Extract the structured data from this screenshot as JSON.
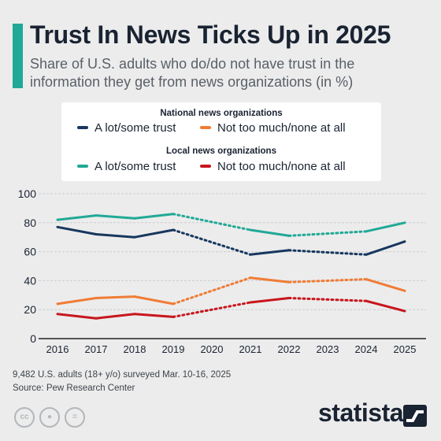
{
  "header": {
    "title": "Trust In News Ticks Up in 2025",
    "subtitle": "Share of U.S. adults who do/do not have trust in the information they get from news organizations (in %)",
    "accent_color": "#1fa996"
  },
  "legend": {
    "national_heading": "National news organizations",
    "local_heading": "Local news organizations"
  },
  "chart_data": {
    "type": "line",
    "x": [
      2016,
      2017,
      2018,
      2019,
      2020,
      2021,
      2022,
      2023,
      2024,
      2025
    ],
    "ylim": [
      0,
      100
    ],
    "yticks": [
      0,
      20,
      40,
      60,
      80,
      100
    ],
    "grid": true,
    "note": "Dotted segments connect years without survey data",
    "series": [
      {
        "name": "A lot/some trust",
        "group": "National news organizations",
        "color": "#17375e",
        "values": [
          77,
          72,
          70,
          75,
          null,
          58,
          61,
          null,
          58,
          67
        ]
      },
      {
        "name": "Not too much/none at all",
        "group": "National news organizations",
        "color": "#f07c36",
        "values": [
          24,
          28,
          29,
          24,
          null,
          42,
          39,
          null,
          41,
          33
        ]
      },
      {
        "name": "A lot/some trust",
        "group": "Local news organizations",
        "color": "#21a996",
        "values": [
          82,
          85,
          83,
          86,
          null,
          75,
          71,
          null,
          74,
          80
        ]
      },
      {
        "name": "Not too much/none at all",
        "group": "Local news organizations",
        "color": "#c8161d",
        "values": [
          17,
          14,
          17,
          15,
          null,
          25,
          28,
          null,
          26,
          19
        ]
      }
    ]
  },
  "footer": {
    "note": "9,482 U.S. adults (18+ y/o) surveyed Mar. 10-16, 2025",
    "source": "Source: Pew Research Center",
    "brand": "statista",
    "license_icons": [
      "cc-icon",
      "attribution-icon",
      "no-derivatives-icon"
    ]
  }
}
